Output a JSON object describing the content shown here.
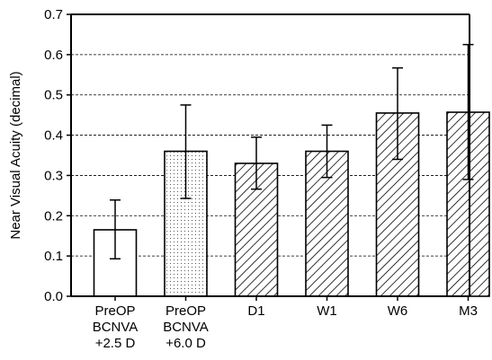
{
  "chart_data": {
    "type": "bar",
    "ylabel": "Near Visual  Acuity (decimal)",
    "xlabel": "",
    "ylim": [
      0,
      0.7
    ],
    "yticks": [
      "0.0",
      "0.1",
      "0.2",
      "0.3",
      "0.4",
      "0.5",
      "0.6",
      "0.7"
    ],
    "grid": "horizontal dashed",
    "categories": [
      {
        "lines": [
          "PreOP",
          "BCNVA",
          "+2.5 D"
        ]
      },
      {
        "lines": [
          "PreOP",
          "BCNVA",
          "+6.0 D"
        ]
      },
      {
        "lines": [
          "D1"
        ]
      },
      {
        "lines": [
          "W1"
        ]
      },
      {
        "lines": [
          "W6"
        ]
      },
      {
        "lines": [
          "M3"
        ]
      }
    ],
    "values": [
      0.165,
      0.36,
      0.33,
      0.36,
      0.455,
      0.457
    ],
    "error_low": [
      0.093,
      0.243,
      0.266,
      0.295,
      0.34,
      0.29
    ],
    "error_high": [
      0.239,
      0.475,
      0.395,
      0.425,
      0.567,
      0.625
    ],
    "fills": [
      "white",
      "dotted",
      "hatched",
      "hatched",
      "hatched",
      "hatched"
    ]
  }
}
